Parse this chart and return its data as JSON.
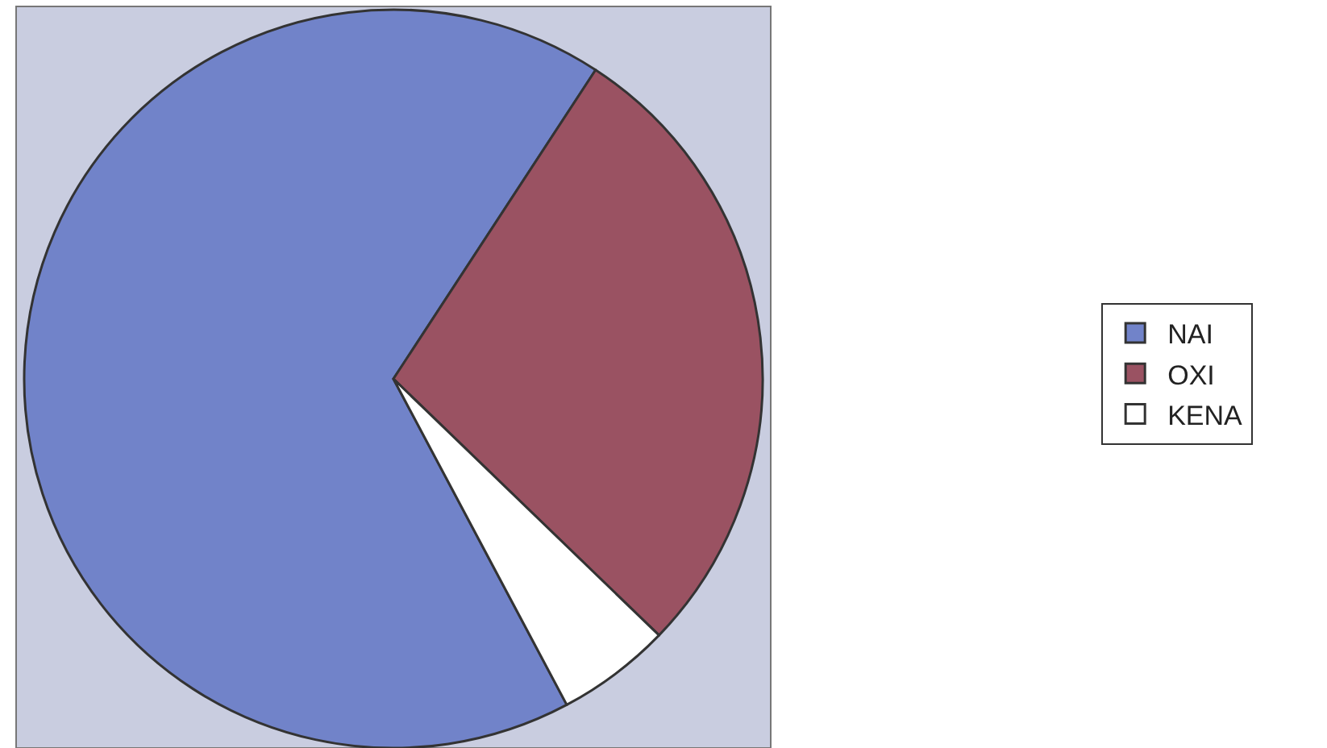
{
  "chart_data": {
    "type": "pie",
    "categories": [
      "ΝΑΙ",
      "ΟΧΙ",
      "ΚΕΝΑ"
    ],
    "values": [
      67,
      28,
      5
    ],
    "colors": [
      "#7183c9",
      "#9a5262",
      "#ffffff"
    ],
    "legend": "right"
  }
}
